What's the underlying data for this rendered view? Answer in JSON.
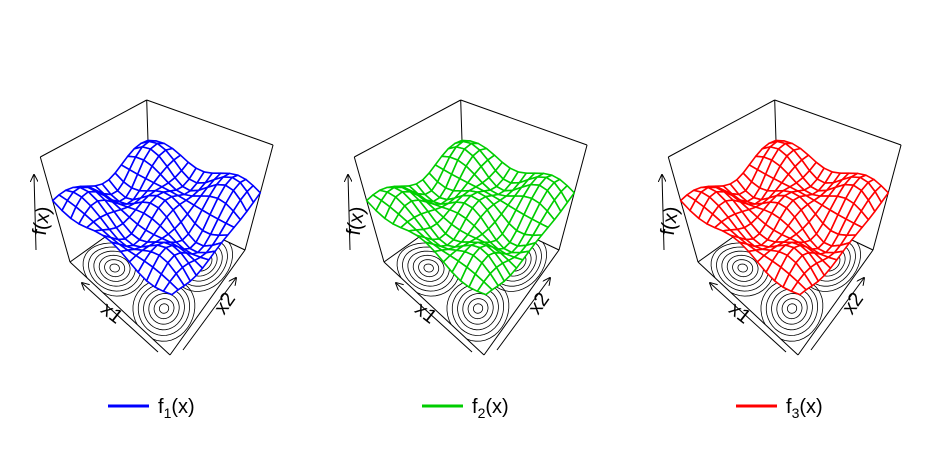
{
  "panels": [
    {
      "color": "#0000ff",
      "z_label": "f(x)",
      "x_label": "x1",
      "y_label": "x2",
      "legend": {
        "name": "f",
        "sub": "1",
        "arg": "(x)"
      }
    },
    {
      "color": "#00cd00",
      "z_label": "f(x)",
      "x_label": "x1",
      "y_label": "x2",
      "legend": {
        "name": "f",
        "sub": "2",
        "arg": "(x)"
      }
    },
    {
      "color": "#ff0000",
      "z_label": "f(x)",
      "x_label": "x1",
      "y_label": "x2",
      "legend": {
        "name": "f",
        "sub": "3",
        "arg": "(x)"
      }
    }
  ]
}
